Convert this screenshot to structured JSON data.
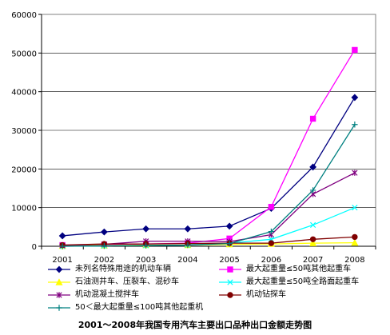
{
  "chart_data": {
    "type": "line",
    "title": "2001～2008年我国专用汽车主要出口品种出口金额走势图",
    "categories": [
      "2001",
      "2002",
      "2003",
      "2004",
      "2005",
      "2006",
      "2007",
      "2008"
    ],
    "ylim": [
      0,
      60000
    ],
    "yticks": [
      "0",
      "10000",
      "20000",
      "30000",
      "40000",
      "50000",
      "60000"
    ],
    "grid": true,
    "legend_position": "bottom",
    "series": [
      {
        "name": "未列名特殊用途的机动车辆",
        "color": "#000080",
        "marker": "diamond",
        "values": [
          2700,
          3700,
          4500,
          4500,
          5200,
          9800,
          20500,
          38500
        ]
      },
      {
        "name": "最大起重量≤50吨其他起重车",
        "color": "#FF00FF",
        "marker": "square",
        "values": [
          300,
          400,
          600,
          800,
          2000,
          10200,
          33000,
          50800
        ]
      },
      {
        "name": "石油测井车、压裂车、混砂车",
        "color": "#FFFF00",
        "marker": "triangle",
        "values": [
          100,
          200,
          300,
          300,
          500,
          600,
          800,
          900
        ]
      },
      {
        "name": "最大起重量≤50吨全路面起重车",
        "color": "#00FFFF",
        "marker": "x",
        "values": [
          0,
          100,
          200,
          300,
          800,
          1800,
          5500,
          10000
        ]
      },
      {
        "name": "机动混凝土搅拌车",
        "color": "#800080",
        "marker": "star",
        "values": [
          200,
          500,
          1300,
          1300,
          1200,
          3000,
          13500,
          19000
        ]
      },
      {
        "name": "机动钻探车",
        "color": "#800000",
        "marker": "dot",
        "values": [
          300,
          600,
          600,
          700,
          800,
          800,
          1800,
          2400
        ]
      },
      {
        "name": "50＜最大起重量≤100吨其他起重机",
        "color": "#008080",
        "marker": "plus",
        "values": [
          0,
          100,
          200,
          300,
          700,
          3800,
          14500,
          31500
        ]
      }
    ]
  }
}
